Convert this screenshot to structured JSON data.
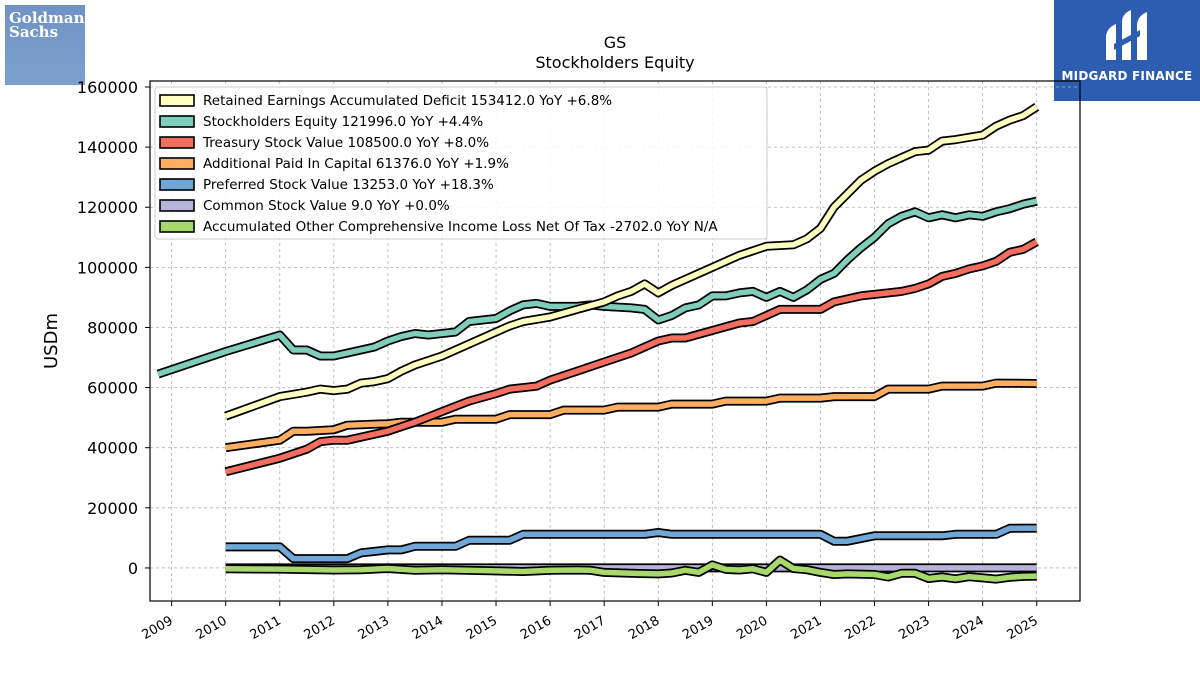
{
  "logos": {
    "left": {
      "line1": "Goldman",
      "line2": "Sachs"
    },
    "right": {
      "name": "MIDGARD FINANCE"
    }
  },
  "colors": {
    "retained": "#ffffbf",
    "equity": "#7fcdbb",
    "treasury": "#f46d5f",
    "apic": "#fdae61",
    "preferred": "#6fa8d6",
    "common": "#b7b3d9",
    "aoci": "#a6d96a",
    "outline": "#000000"
  },
  "chart_data": {
    "type": "line",
    "title": "GS",
    "subtitle": "Stockholders  Equity",
    "ylabel": "USDm",
    "xlim": [
      2008.6,
      2025.8
    ],
    "ylim": [
      -11000,
      162000
    ],
    "yticks": [
      0,
      20000,
      40000,
      60000,
      80000,
      100000,
      120000,
      140000,
      160000
    ],
    "xticks": [
      2009,
      2010,
      2011,
      2012,
      2013,
      2014,
      2015,
      2016,
      2017,
      2018,
      2019,
      2020,
      2021,
      2022,
      2023,
      2024,
      2025
    ],
    "grid": true,
    "legend_position": "top-left",
    "series": [
      {
        "key": "retained",
        "legend": "Retained Earnings Accumulated Deficit  153412.0 YoY +6.8%",
        "points": [
          [
            2010.0,
            50500
          ],
          [
            2011.0,
            57000
          ],
          [
            2011.5,
            58500
          ],
          [
            2011.75,
            59500
          ],
          [
            2012.0,
            59000
          ],
          [
            2012.25,
            59500
          ],
          [
            2012.5,
            61500
          ],
          [
            2012.75,
            62000
          ],
          [
            2013.0,
            63000
          ],
          [
            2013.25,
            65500
          ],
          [
            2013.5,
            67500
          ],
          [
            2013.75,
            69000
          ],
          [
            2014.0,
            70500
          ],
          [
            2014.5,
            74500
          ],
          [
            2015.0,
            78500
          ],
          [
            2015.25,
            80500
          ],
          [
            2015.5,
            82000
          ],
          [
            2016.0,
            83500
          ],
          [
            2016.5,
            86000
          ],
          [
            2017.0,
            88500
          ],
          [
            2017.25,
            90500
          ],
          [
            2017.5,
            92000
          ],
          [
            2017.75,
            94500
          ],
          [
            2018.0,
            91500
          ],
          [
            2018.25,
            94000
          ],
          [
            2018.5,
            96000
          ],
          [
            2019.0,
            100000
          ],
          [
            2019.5,
            104000
          ],
          [
            2019.75,
            105500
          ],
          [
            2020.0,
            107000
          ],
          [
            2020.5,
            107500
          ],
          [
            2020.75,
            109500
          ],
          [
            2021.0,
            113000
          ],
          [
            2021.25,
            120000
          ],
          [
            2021.5,
            124500
          ],
          [
            2021.75,
            129000
          ],
          [
            2022.0,
            132000
          ],
          [
            2022.25,
            134500
          ],
          [
            2022.5,
            136500
          ],
          [
            2022.75,
            138500
          ],
          [
            2023.0,
            139000
          ],
          [
            2023.25,
            142000
          ],
          [
            2023.5,
            142500
          ],
          [
            2024.0,
            144000
          ],
          [
            2024.25,
            147000
          ],
          [
            2024.5,
            149000
          ],
          [
            2024.75,
            150500
          ],
          [
            2025.0,
            153412
          ]
        ]
      },
      {
        "key": "equity",
        "legend": "Stockholders Equity  121996.0 YoY +4.4%",
        "points": [
          [
            2008.75,
            64500
          ],
          [
            2009.5,
            69000
          ],
          [
            2010.0,
            72000
          ],
          [
            2011.0,
            77500
          ],
          [
            2011.25,
            72500
          ],
          [
            2011.5,
            72500
          ],
          [
            2011.75,
            70500
          ],
          [
            2012.0,
            70500
          ],
          [
            2012.25,
            71500
          ],
          [
            2012.5,
            72500
          ],
          [
            2012.75,
            73500
          ],
          [
            2013.0,
            75500
          ],
          [
            2013.25,
            77000
          ],
          [
            2013.5,
            78000
          ],
          [
            2013.75,
            77500
          ],
          [
            2014.0,
            78000
          ],
          [
            2014.25,
            78500
          ],
          [
            2014.5,
            82000
          ],
          [
            2014.75,
            82500
          ],
          [
            2015.0,
            83000
          ],
          [
            2015.25,
            85500
          ],
          [
            2015.5,
            87500
          ],
          [
            2015.75,
            88000
          ],
          [
            2016.0,
            87000
          ],
          [
            2016.5,
            87000
          ],
          [
            2016.75,
            87500
          ],
          [
            2017.0,
            87000
          ],
          [
            2017.5,
            86500
          ],
          [
            2017.75,
            86000
          ],
          [
            2018.0,
            82500
          ],
          [
            2018.25,
            84000
          ],
          [
            2018.5,
            86500
          ],
          [
            2018.75,
            87500
          ],
          [
            2019.0,
            90500
          ],
          [
            2019.25,
            90500
          ],
          [
            2019.5,
            91500
          ],
          [
            2019.75,
            92000
          ],
          [
            2020.0,
            90000
          ],
          [
            2020.25,
            92000
          ],
          [
            2020.5,
            90000
          ],
          [
            2020.75,
            92500
          ],
          [
            2021.0,
            96000
          ],
          [
            2021.25,
            98000
          ],
          [
            2021.5,
            102500
          ],
          [
            2021.75,
            106500
          ],
          [
            2022.0,
            110000
          ],
          [
            2022.25,
            114500
          ],
          [
            2022.5,
            117000
          ],
          [
            2022.75,
            118500
          ],
          [
            2023.0,
            116500
          ],
          [
            2023.25,
            117500
          ],
          [
            2023.5,
            116500
          ],
          [
            2023.75,
            117500
          ],
          [
            2024.0,
            117000
          ],
          [
            2024.25,
            118500
          ],
          [
            2024.5,
            119500
          ],
          [
            2024.75,
            121000
          ],
          [
            2025.0,
            121996
          ]
        ]
      },
      {
        "key": "treasury",
        "legend": "Treasury Stock Value  108500.0 YoY +8.0%",
        "points": [
          [
            2010.0,
            32000
          ],
          [
            2011.0,
            36500
          ],
          [
            2011.5,
            39500
          ],
          [
            2011.75,
            42000
          ],
          [
            2012.0,
            42500
          ],
          [
            2012.25,
            42500
          ],
          [
            2012.5,
            43500
          ],
          [
            2012.75,
            44500
          ],
          [
            2013.0,
            45500
          ],
          [
            2013.5,
            48500
          ],
          [
            2014.0,
            52000
          ],
          [
            2014.5,
            55500
          ],
          [
            2015.0,
            58000
          ],
          [
            2015.25,
            59500
          ],
          [
            2015.5,
            60000
          ],
          [
            2015.75,
            60500
          ],
          [
            2016.0,
            62500
          ],
          [
            2016.5,
            65500
          ],
          [
            2017.0,
            68500
          ],
          [
            2017.5,
            71500
          ],
          [
            2017.75,
            73500
          ],
          [
            2018.0,
            75500
          ],
          [
            2018.25,
            76500
          ],
          [
            2018.5,
            76500
          ],
          [
            2019.0,
            79000
          ],
          [
            2019.5,
            81500
          ],
          [
            2019.75,
            82000
          ],
          [
            2020.0,
            84000
          ],
          [
            2020.25,
            86000
          ],
          [
            2020.5,
            86000
          ],
          [
            2021.0,
            86000
          ],
          [
            2021.25,
            88500
          ],
          [
            2021.5,
            89500
          ],
          [
            2021.75,
            90500
          ],
          [
            2022.0,
            91000
          ],
          [
            2022.5,
            92000
          ],
          [
            2022.75,
            93000
          ],
          [
            2023.0,
            94500
          ],
          [
            2023.25,
            97000
          ],
          [
            2023.5,
            98000
          ],
          [
            2023.75,
            99500
          ],
          [
            2024.0,
            100500
          ],
          [
            2024.25,
            102000
          ],
          [
            2024.5,
            105000
          ],
          [
            2024.75,
            106000
          ],
          [
            2025.0,
            108500
          ]
        ]
      },
      {
        "key": "apic",
        "legend": "Additional Paid In Capital  61376.0 YoY +1.9%",
        "points": [
          [
            2010.0,
            40000
          ],
          [
            2011.0,
            42500
          ],
          [
            2011.25,
            45500
          ],
          [
            2011.5,
            45500
          ],
          [
            2012.0,
            46000
          ],
          [
            2012.25,
            47500
          ],
          [
            2013.0,
            48000
          ],
          [
            2013.25,
            48500
          ],
          [
            2013.5,
            48500
          ],
          [
            2014.0,
            48500
          ],
          [
            2014.25,
            49500
          ],
          [
            2015.0,
            49500
          ],
          [
            2015.25,
            51000
          ],
          [
            2016.0,
            51000
          ],
          [
            2016.25,
            52500
          ],
          [
            2017.0,
            52500
          ],
          [
            2017.25,
            53500
          ],
          [
            2018.0,
            53500
          ],
          [
            2018.25,
            54500
          ],
          [
            2019.0,
            54500
          ],
          [
            2019.25,
            55500
          ],
          [
            2020.0,
            55500
          ],
          [
            2020.25,
            56500
          ],
          [
            2021.0,
            56500
          ],
          [
            2021.25,
            57000
          ],
          [
            2022.0,
            57000
          ],
          [
            2022.25,
            59500
          ],
          [
            2023.0,
            59500
          ],
          [
            2023.25,
            60500
          ],
          [
            2024.0,
            60500
          ],
          [
            2024.25,
            61500
          ],
          [
            2025.0,
            61376
          ]
        ]
      },
      {
        "key": "preferred",
        "legend": "Preferred Stock Value  13253.0 YoY +18.3%",
        "points": [
          [
            2010.0,
            7000
          ],
          [
            2011.0,
            7000
          ],
          [
            2011.25,
            3100
          ],
          [
            2012.0,
            3100
          ],
          [
            2012.25,
            3100
          ],
          [
            2012.5,
            5000
          ],
          [
            2013.0,
            6000
          ],
          [
            2013.25,
            6000
          ],
          [
            2013.5,
            7200
          ],
          [
            2014.0,
            7200
          ],
          [
            2014.25,
            7200
          ],
          [
            2014.5,
            9200
          ],
          [
            2015.0,
            9200
          ],
          [
            2015.25,
            9200
          ],
          [
            2015.5,
            11200
          ],
          [
            2016.0,
            11200
          ],
          [
            2017.0,
            11200
          ],
          [
            2017.75,
            11200
          ],
          [
            2018.0,
            11800
          ],
          [
            2018.25,
            11200
          ],
          [
            2019.0,
            11200
          ],
          [
            2020.0,
            11200
          ],
          [
            2021.0,
            11200
          ],
          [
            2021.25,
            8900
          ],
          [
            2021.5,
            8900
          ],
          [
            2022.0,
            10700
          ],
          [
            2023.0,
            10700
          ],
          [
            2023.25,
            10700
          ],
          [
            2023.5,
            11200
          ],
          [
            2024.0,
            11200
          ],
          [
            2024.25,
            11200
          ],
          [
            2024.5,
            13200
          ],
          [
            2025.0,
            13253
          ]
        ]
      },
      {
        "key": "common",
        "legend": "Common Stock Value  9.0 YoY +0.0%",
        "points": [
          [
            2010.0,
            8
          ],
          [
            2025.0,
            9
          ]
        ]
      },
      {
        "key": "aoci",
        "legend": "Accumulated Other Comprehensive Income Loss Net Of Tax  -2702.0 YoY N/A",
        "points": [
          [
            2010.0,
            -300
          ],
          [
            2011.0,
            -400
          ],
          [
            2012.0,
            -700
          ],
          [
            2012.5,
            -600
          ],
          [
            2013.0,
            -200
          ],
          [
            2013.5,
            -800
          ],
          [
            2014.0,
            -600
          ],
          [
            2015.0,
            -1000
          ],
          [
            2015.5,
            -1200
          ],
          [
            2016.0,
            -800
          ],
          [
            2016.5,
            -700
          ],
          [
            2016.75,
            -800
          ],
          [
            2017.0,
            -1500
          ],
          [
            2017.5,
            -1800
          ],
          [
            2018.0,
            -2000
          ],
          [
            2018.25,
            -1700
          ],
          [
            2018.5,
            -800
          ],
          [
            2018.75,
            -1500
          ],
          [
            2019.0,
            1000
          ],
          [
            2019.25,
            -500
          ],
          [
            2019.5,
            -700
          ],
          [
            2019.75,
            -300
          ],
          [
            2020.0,
            -1500
          ],
          [
            2020.25,
            2600
          ],
          [
            2020.5,
            -200
          ],
          [
            2020.75,
            -600
          ],
          [
            2021.0,
            -1500
          ],
          [
            2021.25,
            -2200
          ],
          [
            2021.5,
            -2000
          ],
          [
            2022.0,
            -2200
          ],
          [
            2022.25,
            -3000
          ],
          [
            2022.5,
            -1800
          ],
          [
            2022.75,
            -1800
          ],
          [
            2023.0,
            -3500
          ],
          [
            2023.25,
            -3000
          ],
          [
            2023.5,
            -3600
          ],
          [
            2023.75,
            -2900
          ],
          [
            2024.0,
            -3300
          ],
          [
            2024.25,
            -3700
          ],
          [
            2024.5,
            -3100
          ],
          [
            2024.75,
            -2800
          ],
          [
            2025.0,
            -2702
          ]
        ]
      }
    ]
  }
}
